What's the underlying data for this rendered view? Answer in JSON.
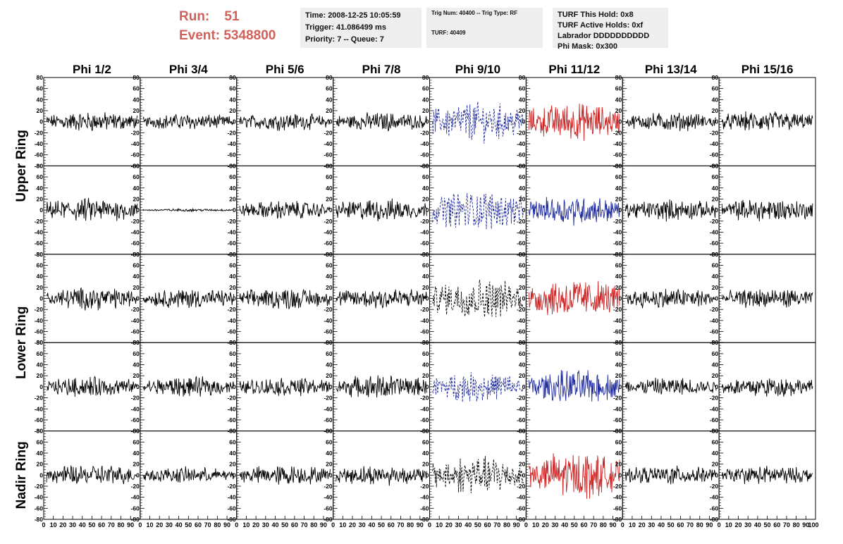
{
  "header": {
    "run_label": "Run:",
    "run_value": "51",
    "event_label": "Event:",
    "event_value": "5348800",
    "accent_color": "#d0605a"
  },
  "info_boxes": {
    "time": [
      "Time: 2008-12-25 10:05:59",
      "Trigger: 41.086499 ms",
      "Priority: 7 -- Queue: 7"
    ],
    "trig": [
      "Trig Num: 40400 -- Trig Type: RF",
      "TURF: 40409"
    ],
    "turf": [
      "TURF This Hold: 0x8",
      "TURF Active Holds: 0xf",
      "Labrador DDDDDDDDDD",
      "Phi Mask: 0x300"
    ]
  },
  "chart_data": {
    "type": "line",
    "description_columns": [
      "Phi 1/2",
      "Phi 3/4",
      "Phi 5/6",
      "Phi 7/8",
      "Phi 9/10",
      "Phi 11/12",
      "Phi 13/14",
      "Phi 15/16"
    ],
    "ring_labels": [
      {
        "label": "Upper Ring",
        "rows": [
          0,
          1
        ]
      },
      {
        "label": "Lower Ring",
        "rows": [
          2,
          3
        ]
      },
      {
        "label": "Nadir Ring",
        "rows": [
          4
        ]
      }
    ],
    "rows": 5,
    "xlim": [
      0,
      100
    ],
    "ylim": [
      -80,
      80
    ],
    "y_ticks": [
      -80,
      -60,
      -40,
      -20,
      0,
      20,
      40,
      60,
      80
    ],
    "x_ticks": [
      0,
      10,
      20,
      30,
      40,
      50,
      60,
      70,
      80,
      90
    ],
    "x_last_tick": "100",
    "trace_styles": {
      "normal": {
        "color": "#000000",
        "dashed": false
      },
      "hit_blue": {
        "color": "#1f2a9a",
        "dashed": false
      },
      "hit_red": {
        "color": "#cc2222",
        "dashed": false
      },
      "dashed_blue": {
        "color": "#1f2a9a",
        "dashed": true
      },
      "dashed_black": {
        "color": "#000000",
        "dashed": true
      }
    },
    "traces": [
      [
        "normal",
        "normal",
        "normal",
        "normal",
        "dashed_blue",
        "hit_red",
        "normal",
        "normal"
      ],
      [
        "normal",
        "normal",
        "normal",
        "normal",
        "dashed_blue",
        "hit_blue",
        "normal",
        "normal"
      ],
      [
        "normal",
        "normal",
        "normal",
        "normal",
        "dashed_black",
        "hit_red",
        "normal",
        "normal"
      ],
      [
        "normal",
        "normal",
        "normal",
        "normal",
        "dashed_blue",
        "hit_blue",
        "normal",
        "normal"
      ],
      [
        "normal",
        "normal",
        "normal",
        "normal",
        "dashed_black",
        "hit_red",
        "normal",
        "normal"
      ]
    ],
    "amplitudes": [
      [
        15,
        12,
        13,
        14,
        30,
        28,
        14,
        16
      ],
      [
        18,
        2,
        14,
        17,
        30,
        22,
        16,
        18
      ],
      [
        17,
        15,
        16,
        17,
        30,
        30,
        16,
        15
      ],
      [
        15,
        15,
        14,
        18,
        22,
        25,
        14,
        15
      ],
      [
        16,
        12,
        15,
        15,
        28,
        35,
        14,
        14
      ]
    ]
  }
}
